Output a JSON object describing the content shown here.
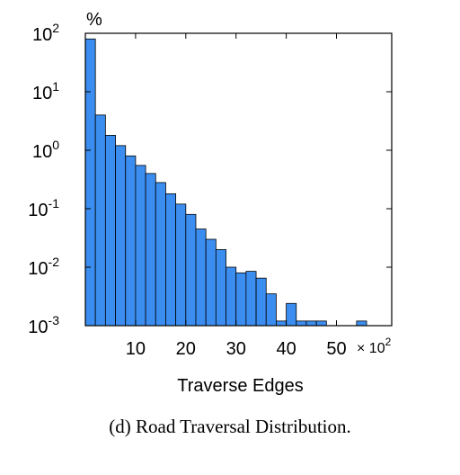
{
  "chart_data": {
    "type": "bar",
    "yscale": "log",
    "ylim": [
      0.001,
      100
    ],
    "xlim": [
      0,
      61
    ],
    "y_unit": "%",
    "xlabel": "Traverse Edges",
    "x_multiplier": "× 10²",
    "x_ticks": [
      "10",
      "20",
      "30",
      "40",
      "50"
    ],
    "x_tick_values": [
      10,
      20,
      30,
      40,
      50
    ],
    "y_ticks": [
      {
        "value": 100,
        "base": "10",
        "exp": "2"
      },
      {
        "value": 10,
        "base": "10",
        "exp": "1"
      },
      {
        "value": 1,
        "base": "10",
        "exp": "0"
      },
      {
        "value": 0.1,
        "base": "10",
        "exp": "-1"
      },
      {
        "value": 0.01,
        "base": "10",
        "exp": "-2"
      },
      {
        "value": 0.001,
        "base": "10",
        "exp": "-3"
      }
    ],
    "bin_width": 2,
    "bar_color": "#3b8ef0",
    "bars": [
      {
        "x": 0,
        "value": 80
      },
      {
        "x": 2,
        "value": 4
      },
      {
        "x": 4,
        "value": 1.8
      },
      {
        "x": 6,
        "value": 1.2
      },
      {
        "x": 8,
        "value": 0.8
      },
      {
        "x": 10,
        "value": 0.55
      },
      {
        "x": 12,
        "value": 0.4
      },
      {
        "x": 14,
        "value": 0.28
      },
      {
        "x": 16,
        "value": 0.18
      },
      {
        "x": 18,
        "value": 0.12
      },
      {
        "x": 20,
        "value": 0.08
      },
      {
        "x": 22,
        "value": 0.045
      },
      {
        "x": 24,
        "value": 0.03
      },
      {
        "x": 26,
        "value": 0.02
      },
      {
        "x": 28,
        "value": 0.01
      },
      {
        "x": 30,
        "value": 0.008
      },
      {
        "x": 32,
        "value": 0.0085
      },
      {
        "x": 34,
        "value": 0.0065
      },
      {
        "x": 36,
        "value": 0.0035
      },
      {
        "x": 38,
        "value": 0.0012
      },
      {
        "x": 40,
        "value": 0.0024
      },
      {
        "x": 42,
        "value": 0.0012
      },
      {
        "x": 44,
        "value": 0.0012
      },
      {
        "x": 46,
        "value": 0.0012
      },
      {
        "x": 54,
        "value": 0.0012
      }
    ]
  },
  "caption": "(d) Road Traversal Distribution."
}
